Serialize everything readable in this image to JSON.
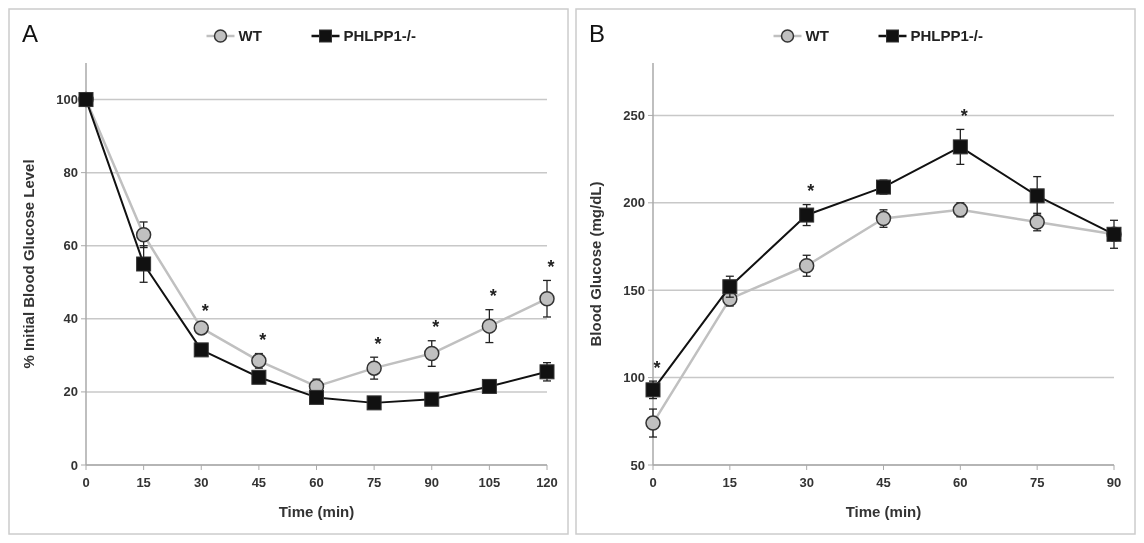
{
  "chart_data": [
    {
      "type": "line",
      "x": [
        0,
        15,
        30,
        45,
        60,
        75,
        90,
        105,
        120
      ],
      "xlim": [
        0,
        120
      ],
      "xticks": [
        0,
        15,
        30,
        45,
        60,
        75,
        90,
        105,
        120
      ],
      "ylim": [
        0,
        110
      ],
      "yticks": [
        0,
        20,
        40,
        60,
        80,
        100
      ],
      "xlabel": "Time (min)",
      "ylabel": "% Initial Blood Glucose Level",
      "grid": "y",
      "legend": "top",
      "series": [
        {
          "name": "WT",
          "color": "#c0c0c0",
          "marker": "circle",
          "values": [
            100,
            63,
            37.5,
            28.5,
            21.5,
            26.5,
            30.5,
            38,
            45.5
          ],
          "errors": [
            null,
            3.5,
            1,
            2,
            2,
            3,
            3.5,
            4.5,
            5
          ]
        },
        {
          "name": "PHLPP1-/-",
          "color": "#111111",
          "marker": "square",
          "values": [
            100,
            55,
            31.5,
            24,
            18.5,
            17,
            18,
            21.5,
            25.5
          ],
          "errors": [
            null,
            5,
            1,
            1,
            0.5,
            1,
            1,
            1.5,
            2.5
          ]
        }
      ],
      "annotations": [
        "A",
        {
          "text": "*",
          "x": 30,
          "y": 37.5
        },
        {
          "text": "*",
          "x": 45,
          "y": 28.5
        },
        {
          "text": "*",
          "x": 75,
          "y": 26.5
        },
        {
          "text": "*",
          "x": 90,
          "y": 30.5
        },
        {
          "text": "*",
          "x": 105,
          "y": 38
        },
        {
          "text": "*",
          "x": 120,
          "y": 45.5
        }
      ]
    },
    {
      "type": "line",
      "x": [
        0,
        15,
        30,
        45,
        60,
        75,
        90
      ],
      "xlim": [
        0,
        90
      ],
      "xticks": [
        0,
        15,
        30,
        45,
        60,
        75,
        90
      ],
      "ylim": [
        50,
        280
      ],
      "yticks": [
        50,
        100,
        150,
        200,
        250
      ],
      "xlabel": "Time (min)",
      "ylabel": "Blood Glucose (mg/dL)",
      "grid": "y",
      "legend": "top",
      "series": [
        {
          "name": "WT",
          "color": "#c0c0c0",
          "marker": "circle",
          "values": [
            74,
            145,
            164,
            191,
            196,
            189,
            182
          ],
          "errors": [
            8,
            4,
            6,
            5,
            4,
            5,
            3
          ]
        },
        {
          "name": "PHLPP1-/-",
          "color": "#111111",
          "marker": "square",
          "values": [
            93,
            152,
            193,
            209,
            232,
            204,
            182
          ],
          "errors": [
            5,
            6,
            6,
            4,
            10,
            11,
            8
          ]
        }
      ],
      "annotations": [
        "B",
        {
          "text": "*",
          "x": 0,
          "y": 93
        },
        {
          "text": "*",
          "x": 30,
          "y": 193
        },
        {
          "text": "*",
          "x": 60,
          "y": 232
        }
      ]
    }
  ]
}
